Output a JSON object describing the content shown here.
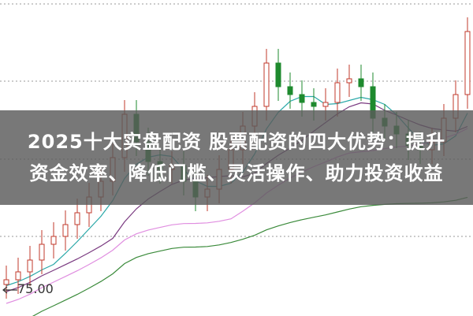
{
  "chart_data": {
    "type": "candlestick",
    "title": "2025十大实盘配资 股票配资的四大优势：提升资金效率、降低门槛、灵活操作、助力投资收益",
    "price_marker": "75.00",
    "close": [
      75.65,
      76.15,
      76.9,
      77.9,
      78.4,
      79.15,
      79.9,
      80.9,
      81.9,
      83.4,
      86.15,
      84.4,
      83.15,
      82.65,
      82.9,
      81.9,
      80.9,
      81.4,
      82.65,
      83.9,
      85.4,
      86.65,
      89.4,
      87.9,
      87.4,
      86.9,
      86.65,
      86.9,
      88.15,
      88.4,
      87.9,
      85.9,
      85.4,
      84.9,
      84.15,
      83.9,
      84.4,
      85.9,
      87.4,
      91.4
    ],
    "moving_averages": [
      {
        "period": 5,
        "color": "#2aa8a8"
      },
      {
        "period": 10,
        "color": "#7a3a80"
      },
      {
        "period": 20,
        "color": "#e08ee0"
      },
      {
        "period": 40,
        "color": "#3a8a3a"
      }
    ],
    "colors": {
      "up": "#c0392b",
      "down": "#1e8a2e",
      "grid": "#999999"
    },
    "grid": true
  },
  "banner": {
    "line1": "2025十大实盘配资 股票配资的四大优势：提升",
    "line2": "资金效率、降低门槛、灵活操作、助力投资收益"
  }
}
